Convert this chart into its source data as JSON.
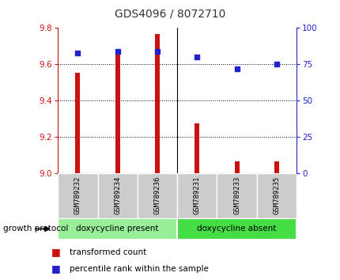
{
  "title": "GDS4096 / 8072710",
  "samples": [
    "GSM789232",
    "GSM789234",
    "GSM789236",
    "GSM789231",
    "GSM789233",
    "GSM789235"
  ],
  "transformed_counts": [
    9.555,
    9.67,
    9.765,
    9.275,
    9.068,
    9.068
  ],
  "percentile_ranks": [
    83,
    84,
    84,
    80,
    72,
    75
  ],
  "ylim_left": [
    9.0,
    9.8
  ],
  "ylim_right": [
    0,
    100
  ],
  "yticks_left": [
    9.0,
    9.2,
    9.4,
    9.6,
    9.8
  ],
  "yticks_right": [
    0,
    25,
    50,
    75,
    100
  ],
  "bar_color": "#cc1111",
  "dot_color": "#2222cc",
  "bar_width": 0.12,
  "group1_label": "doxycycline present",
  "group2_label": "doxycycline absent",
  "group1_color": "#99ee99",
  "group2_color": "#44dd44",
  "group_protocol_label": "growth protocol",
  "legend_bar_label": "transformed count",
  "legend_dot_label": "percentile rank within the sample",
  "title_color": "#333333",
  "left_axis_color": "#cc1111",
  "right_axis_color": "#2222cc",
  "background_color": "#ffffff",
  "plot_bg_color": "#ffffff",
  "grid_color": "#333333",
  "group_bar_bg": "#cccccc",
  "n_group1": 3,
  "n_group2": 3
}
